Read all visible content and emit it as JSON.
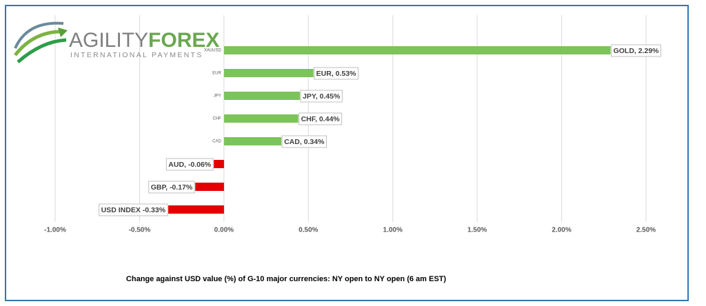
{
  "logo": {
    "brand_a": "AGILITY",
    "brand_b": "FOREX",
    "tagline": "INTERNATIONAL PAYMENTS"
  },
  "chart_data": {
    "type": "bar",
    "orientation": "horizontal",
    "title": "Change against  USD value (%)  of  G-10 major currencies:  NY open to NY open  (6 am EST)",
    "categories": [
      "XAUUSD",
      "EUR",
      "JPY",
      "CHF",
      "CAD",
      null,
      null,
      null
    ],
    "values": [
      2.29,
      0.53,
      0.45,
      0.44,
      0.34,
      -0.06,
      -0.17,
      -0.33
    ],
    "value_labels": [
      "GOLD, 2.29%",
      "EUR, 0.53%",
      "JPY, 0.45%",
      "CHF, 0.44%",
      "CAD, 0.34%",
      "AUD, -0.06%",
      "GBP, -0.17%",
      "USD INDEX -0.33%"
    ],
    "positive_color": "#7cc35a",
    "negative_color": "#e30000",
    "xlim": [
      -1,
      2.5
    ],
    "xticks": [
      {
        "value": -1,
        "label": "-1.00%"
      },
      {
        "value": -0.5,
        "label": "-0.50%"
      },
      {
        "value": 0,
        "label": "0.00%"
      },
      {
        "value": 0.5,
        "label": "0.50%"
      },
      {
        "value": 1,
        "label": "1.00%"
      },
      {
        "value": 1.5,
        "label": "1.50%"
      },
      {
        "value": 2,
        "label": "2.00%"
      },
      {
        "value": 2.5,
        "label": "2.50%"
      }
    ],
    "grid": true
  }
}
